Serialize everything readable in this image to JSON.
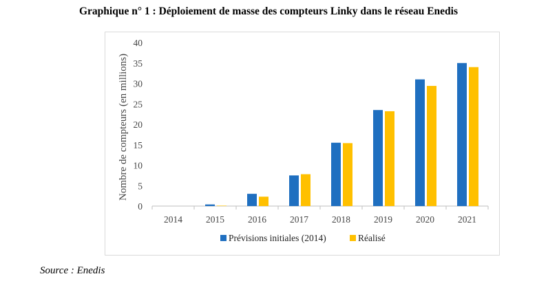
{
  "title": "Graphique n° 1 :  Déploiement de masse des compteurs Linky dans le réseau Enedis",
  "source": "Source : Enedis",
  "colors": {
    "series1": "#1f6fc0",
    "series2": "#ffc000",
    "axis": "#bfbfbf"
  },
  "chart_data": {
    "type": "bar",
    "title": "",
    "xlabel": "",
    "ylabel": "Nombre de compteurs (en millions)",
    "ylim": [
      0,
      40
    ],
    "yticks": [
      0,
      5,
      10,
      15,
      20,
      25,
      30,
      35,
      40
    ],
    "grid": false,
    "legend_position": "bottom",
    "categories": [
      "2014",
      "2015",
      "2016",
      "2017",
      "2018",
      "2019",
      "2020",
      "2021"
    ],
    "series": [
      {
        "name": "Prévisions initiales (2014)",
        "color": "#1f6fc0",
        "values": [
          0,
          0.4,
          3.0,
          7.5,
          15.5,
          23.5,
          31.0,
          35.0
        ]
      },
      {
        "name": "Réalisé",
        "color": "#ffc000",
        "values": [
          0,
          0.1,
          2.3,
          7.8,
          15.4,
          23.2,
          29.4,
          34.0
        ]
      }
    ]
  }
}
